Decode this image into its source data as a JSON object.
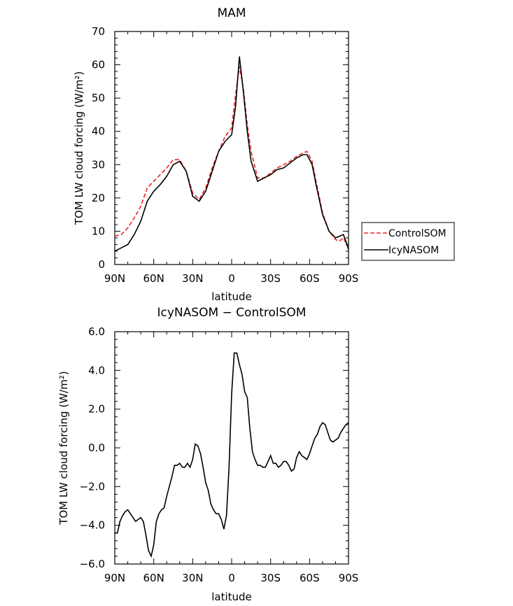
{
  "chart_data": [
    {
      "type": "line",
      "title": "MAM",
      "xlabel": "latitude",
      "ylabel": "TOM LW cloud forcing (W/m²)",
      "xlim": [
        90,
        -90
      ],
      "ylim": [
        0,
        70
      ],
      "x_ticks": [
        {
          "value": 90,
          "label": "90N"
        },
        {
          "value": 60,
          "label": "60N"
        },
        {
          "value": 30,
          "label": "30N"
        },
        {
          "value": 0,
          "label": "0"
        },
        {
          "value": -30,
          "label": "30S"
        },
        {
          "value": -60,
          "label": "60S"
        },
        {
          "value": -90,
          "label": "90S"
        }
      ],
      "y_ticks": [
        {
          "value": 0,
          "label": "0"
        },
        {
          "value": 10,
          "label": "10"
        },
        {
          "value": 20,
          "label": "20"
        },
        {
          "value": 30,
          "label": "30"
        },
        {
          "value": 40,
          "label": "40"
        },
        {
          "value": 50,
          "label": "50"
        },
        {
          "value": 60,
          "label": "60"
        },
        {
          "value": 70,
          "label": "70"
        }
      ],
      "legend": {
        "placement": "right"
      },
      "series": [
        {
          "name": "ControlSOM",
          "color": "#e8262a",
          "dash": "dashed",
          "x": [
            90,
            85,
            80,
            75,
            70,
            65,
            60,
            55,
            50,
            45,
            40,
            35,
            30,
            25,
            20,
            15,
            10,
            5,
            0,
            -3,
            -6,
            -9,
            -12,
            -15,
            -20,
            -25,
            -30,
            -35,
            -40,
            -45,
            -50,
            -55,
            -58,
            -62,
            -65,
            -70,
            -75,
            -80,
            -83,
            -86,
            -88,
            -90
          ],
          "y": [
            8.5,
            9,
            11,
            14,
            17.5,
            23,
            25,
            27,
            29,
            31.5,
            31.5,
            28,
            21.5,
            19.5,
            23,
            29,
            34,
            38.5,
            41,
            51,
            59.5,
            53,
            42,
            34,
            26,
            26,
            27.5,
            29,
            30,
            31,
            32.5,
            33.5,
            34,
            31,
            25,
            15.5,
            10,
            7.5,
            7,
            8,
            6.5,
            5
          ]
        },
        {
          "name": "IcyNASOM",
          "color": "#000000",
          "dash": "solid",
          "x": [
            90,
            85,
            80,
            75,
            70,
            65,
            60,
            55,
            50,
            45,
            40,
            35,
            30,
            25,
            20,
            15,
            10,
            5,
            0,
            -3,
            -6,
            -9,
            -12,
            -15,
            -20,
            -25,
            -30,
            -35,
            -40,
            -45,
            -50,
            -55,
            -58,
            -62,
            -65,
            -70,
            -75,
            -80,
            -83,
            -86,
            -88,
            -90
          ],
          "y": [
            4,
            5,
            6,
            9,
            13,
            19,
            22,
            24,
            26.5,
            30,
            31,
            28,
            20.5,
            19,
            22,
            28,
            34,
            37,
            39,
            47.5,
            62.5,
            52,
            40,
            31,
            25,
            26,
            27,
            28.5,
            29,
            30.5,
            32,
            33,
            33,
            30,
            24,
            15,
            10,
            8,
            8.5,
            9,
            7,
            4.5
          ]
        }
      ]
    },
    {
      "type": "line",
      "title": "IcyNASOM − ControlSOM",
      "xlabel": "latitude",
      "ylabel": "TOM LW cloud forcing (W/m²)",
      "xlim": [
        90,
        -90
      ],
      "ylim": [
        -6,
        6
      ],
      "x_ticks": [
        {
          "value": 90,
          "label": "90N"
        },
        {
          "value": 60,
          "label": "60N"
        },
        {
          "value": 30,
          "label": "30N"
        },
        {
          "value": 0,
          "label": "0"
        },
        {
          "value": -30,
          "label": "30S"
        },
        {
          "value": -60,
          "label": "60S"
        },
        {
          "value": -90,
          "label": "90S"
        }
      ],
      "y_ticks": [
        {
          "value": -6,
          "label": "−6.0"
        },
        {
          "value": -4,
          "label": "−4.0"
        },
        {
          "value": -2,
          "label": "−2.0"
        },
        {
          "value": 0,
          "label": "0.0"
        },
        {
          "value": 2,
          "label": "2.0"
        },
        {
          "value": 4,
          "label": "4.0"
        },
        {
          "value": 6,
          "label": "6.0"
        }
      ],
      "series": [
        {
          "color": "#000000",
          "dash": "solid",
          "x": [
            90,
            88,
            86,
            84,
            82,
            80,
            78,
            76,
            74,
            72,
            70,
            68,
            66,
            64,
            62,
            60,
            58,
            56,
            54,
            52,
            50,
            48,
            46,
            44,
            42,
            40,
            38,
            36,
            34,
            32,
            30,
            28,
            26,
            24,
            22,
            20,
            18,
            16,
            14,
            12,
            10,
            8,
            6,
            4,
            2,
            0,
            -2,
            -4,
            -6,
            -8,
            -10,
            -12,
            -14,
            -16,
            -18,
            -20,
            -22,
            -24,
            -26,
            -28,
            -30,
            -32,
            -34,
            -36,
            -38,
            -40,
            -42,
            -44,
            -46,
            -48,
            -50,
            -52,
            -54,
            -56,
            -58,
            -60,
            -62,
            -64,
            -66,
            -68,
            -70,
            -72,
            -74,
            -76,
            -78,
            -80,
            -82,
            -84,
            -86,
            -88,
            -90
          ],
          "y": [
            -4.4,
            -4.4,
            -3.8,
            -3.5,
            -3.3,
            -3.2,
            -3.4,
            -3.6,
            -3.8,
            -3.7,
            -3.6,
            -3.8,
            -4.5,
            -5.3,
            -5.6,
            -5.0,
            -3.8,
            -3.4,
            -3.2,
            -3.1,
            -2.5,
            -2.0,
            -1.5,
            -0.9,
            -0.9,
            -0.8,
            -1.0,
            -1.0,
            -0.8,
            -1.0,
            -0.6,
            0.2,
            0.1,
            -0.3,
            -1.0,
            -1.8,
            -2.2,
            -2.9,
            -3.2,
            -3.4,
            -3.4,
            -3.7,
            -4.2,
            -3.5,
            -1.0,
            2.8,
            4.9,
            4.9,
            4.3,
            3.8,
            2.9,
            2.6,
            1.0,
            -0.2,
            -0.6,
            -0.9,
            -0.9,
            -1.0,
            -1.0,
            -0.7,
            -0.4,
            -0.8,
            -0.8,
            -1.0,
            -0.9,
            -0.7,
            -0.7,
            -0.9,
            -1.2,
            -1.1,
            -0.5,
            -0.2,
            -0.4,
            -0.5,
            -0.6,
            -0.3,
            0.1,
            0.5,
            0.7,
            1.1,
            1.3,
            1.2,
            0.8,
            0.4,
            0.3,
            0.4,
            0.5,
            0.8,
            1.0,
            1.2,
            1.3
          ]
        }
      ]
    }
  ]
}
